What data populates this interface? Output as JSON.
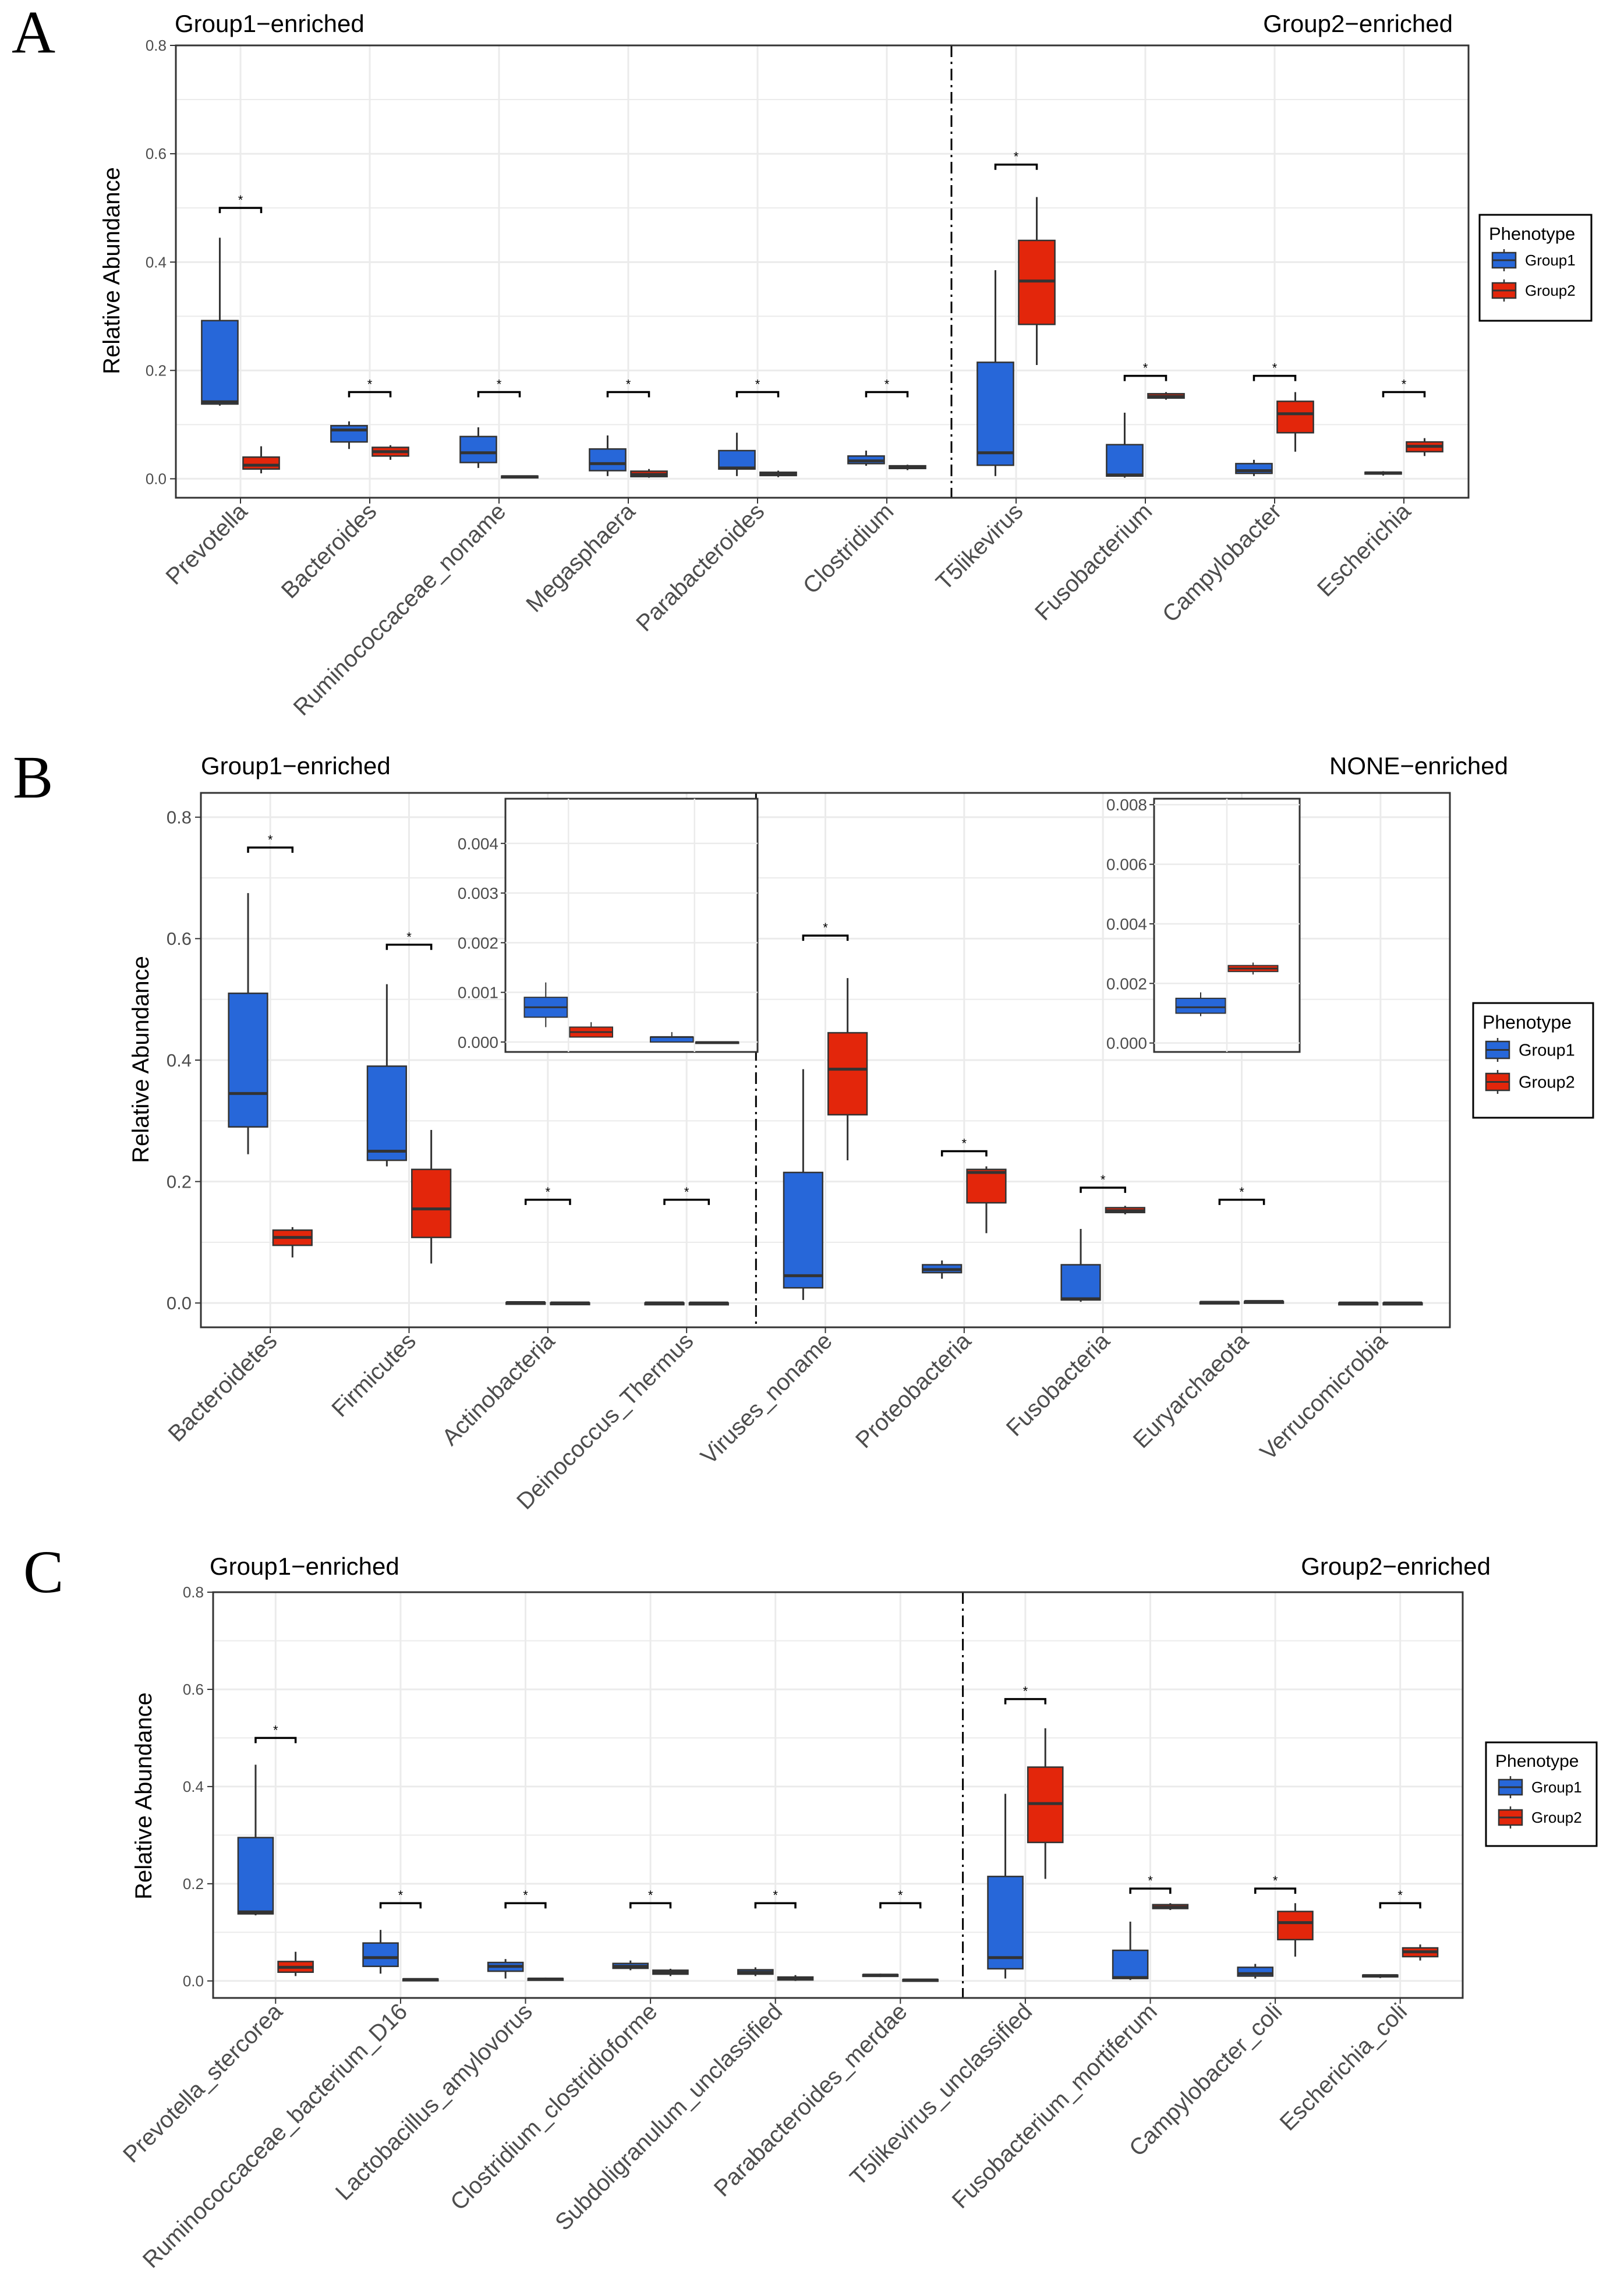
{
  "colors": {
    "group1": "#2767d9",
    "group2": "#e3260b",
    "grid": "#ebebeb",
    "panel_border": "#333333",
    "box_stroke": "#333333"
  },
  "legend": {
    "title": "Phenotype",
    "items": [
      "Group1",
      "Group2"
    ]
  },
  "chart_data": [
    {
      "panel": "A",
      "type": "box",
      "ylabel": "Relative Abundance",
      "ylim": [
        -0.035,
        0.8
      ],
      "yticks": [
        "0.0",
        "0.2",
        "0.4",
        "0.6",
        "0.8"
      ],
      "left_title": "Group1−enriched",
      "right_title": "Group2−enriched",
      "divider_after_index": 5,
      "categories": [
        "Prevotella",
        "Bacteroides",
        "Ruminococcaceae_noname",
        "Megasphaera",
        "Parabacteroides",
        "Clostridium",
        "T5likevirus",
        "Fusobacterium",
        "Campylobacter",
        "Escherichia"
      ],
      "series": [
        {
          "name": "Group1",
          "boxes": [
            [
              0.135,
              0.138,
              0.142,
              0.292,
              0.445
            ],
            [
              0.055,
              0.068,
              0.09,
              0.098,
              0.106
            ],
            [
              0.02,
              0.03,
              0.048,
              0.078,
              0.095
            ],
            [
              0.005,
              0.015,
              0.028,
              0.055,
              0.08
            ],
            [
              0.005,
              0.018,
              0.02,
              0.052,
              0.085
            ],
            [
              0.024,
              0.028,
              0.033,
              0.042,
              0.052
            ],
            [
              0.005,
              0.025,
              0.048,
              0.215,
              0.385
            ],
            [
              0.002,
              0.005,
              0.007,
              0.063,
              0.122
            ],
            [
              0.005,
              0.01,
              0.015,
              0.028,
              0.035
            ],
            [
              0.006,
              0.009,
              0.011,
              0.012,
              0.014
            ]
          ]
        },
        {
          "name": "Group2",
          "boxes": [
            [
              0.01,
              0.018,
              0.025,
              0.04,
              0.06
            ],
            [
              0.035,
              0.042,
              0.05,
              0.058,
              0.062
            ],
            [
              0.001,
              0.003,
              0.004,
              0.005,
              0.006
            ],
            [
              0.002,
              0.004,
              0.008,
              0.014,
              0.018
            ],
            [
              0.003,
              0.006,
              0.009,
              0.012,
              0.015
            ],
            [
              0.016,
              0.019,
              0.022,
              0.024,
              0.026
            ],
            [
              0.21,
              0.285,
              0.365,
              0.44,
              0.52
            ],
            [
              0.146,
              0.149,
              0.152,
              0.157,
              0.16
            ],
            [
              0.05,
              0.085,
              0.12,
              0.143,
              0.16
            ],
            [
              0.042,
              0.05,
              0.06,
              0.068,
              0.075
            ]
          ]
        }
      ],
      "significance": [
        {
          "index": 0,
          "y": 0.5,
          "label": "*"
        },
        {
          "index": 1,
          "y": 0.16,
          "label": "*"
        },
        {
          "index": 2,
          "y": 0.16,
          "label": "*"
        },
        {
          "index": 3,
          "y": 0.16,
          "label": "*"
        },
        {
          "index": 4,
          "y": 0.16,
          "label": "*"
        },
        {
          "index": 5,
          "y": 0.16,
          "label": "*"
        },
        {
          "index": 6,
          "y": 0.58,
          "label": "*"
        },
        {
          "index": 7,
          "y": 0.19,
          "label": "*"
        },
        {
          "index": 8,
          "y": 0.19,
          "label": "*"
        },
        {
          "index": 9,
          "y": 0.16,
          "label": "*"
        }
      ]
    },
    {
      "panel": "B",
      "type": "box",
      "ylabel": "Relative Abundance",
      "ylim": [
        -0.04,
        0.84
      ],
      "yticks": [
        "0.0",
        "0.2",
        "0.4",
        "0.6",
        "0.8"
      ],
      "left_title": "Group1−enriched",
      "right_title": "NONE−enriched",
      "divider_after_index": 3,
      "categories": [
        "Bacteroidetes",
        "Firmicutes",
        "Actinobacteria",
        "Deinococcus_Thermus",
        "Viruses_noname",
        "Proteobacteria",
        "Fusobacteria",
        "Euryarchaeota",
        "Verrucomicrobia"
      ],
      "series": [
        {
          "name": "Group1",
          "boxes": [
            [
              0.245,
              0.29,
              0.345,
              0.51,
              0.675
            ],
            [
              0.225,
              0.235,
              0.25,
              0.39,
              0.525
            ],
            [
              0.0003,
              0.0005,
              0.0007,
              0.0009,
              0.0012
            ],
            [
              0.0,
              0.0,
              0.0001,
              0.0001,
              0.0002
            ],
            [
              0.005,
              0.025,
              0.045,
              0.215,
              0.385
            ],
            [
              0.04,
              0.05,
              0.055,
              0.063,
              0.07
            ],
            [
              0.002,
              0.005,
              0.007,
              0.063,
              0.122
            ],
            [
              0.0009,
              0.001,
              0.0012,
              0.0015,
              0.0017
            ],
            [
              0.0,
              0.0,
              0.0,
              0.0,
              0.0
            ]
          ]
        },
        {
          "name": "Group2",
          "boxes": [
            [
              0.075,
              0.095,
              0.108,
              0.12,
              0.125
            ],
            [
              0.065,
              0.108,
              0.155,
              0.22,
              0.285
            ],
            [
              0.0001,
              0.0001,
              0.0002,
              0.0003,
              0.0004
            ],
            [
              0.0,
              0.0,
              0.0,
              0.0,
              0.0
            ],
            [
              0.235,
              0.31,
              0.385,
              0.445,
              0.535
            ],
            [
              0.115,
              0.165,
              0.215,
              0.22,
              0.225
            ],
            [
              0.146,
              0.149,
              0.152,
              0.157,
              0.16
            ],
            [
              0.0023,
              0.0024,
              0.0025,
              0.0026,
              0.0027
            ],
            [
              0.0,
              0.0,
              0.0,
              0.0,
              0.0
            ]
          ]
        }
      ],
      "significance": [
        {
          "index": 0,
          "y": 0.75,
          "label": "*"
        },
        {
          "index": 1,
          "y": 0.59,
          "label": "*"
        },
        {
          "index": 2,
          "y": 0.17,
          "label": "*"
        },
        {
          "index": 3,
          "y": 0.17,
          "label": "*"
        },
        {
          "index": 4,
          "y": 0.605,
          "label": "*"
        },
        {
          "index": 5,
          "y": 0.25,
          "label": "*"
        },
        {
          "index": 6,
          "y": 0.19,
          "label": "*"
        },
        {
          "index": 7,
          "y": 0.17,
          "label": "*"
        }
      ],
      "insets": [
        {
          "indices": [
            2,
            3
          ],
          "ylim": [
            -0.0002,
            0.0049
          ],
          "yticks": [
            "0.000",
            "0.001",
            "0.002",
            "0.003",
            "0.004"
          ],
          "yvalues": [
            0,
            0.001,
            0.002,
            0.003,
            0.004
          ]
        },
        {
          "indices": [
            7
          ],
          "ylim": [
            -0.0003,
            0.0082
          ],
          "yticks": [
            "0.000",
            "0.002",
            "0.004",
            "0.006",
            "0.008"
          ],
          "yvalues": [
            0,
            0.002,
            0.004,
            0.006,
            0.008
          ]
        }
      ]
    },
    {
      "panel": "C",
      "type": "box",
      "ylabel": "Relative Abundance",
      "ylim": [
        -0.035,
        0.8
      ],
      "yticks": [
        "0.0",
        "0.2",
        "0.4",
        "0.6",
        "0.8"
      ],
      "left_title": "Group1−enriched",
      "right_title": "Group2−enriched",
      "divider_after_index": 5,
      "categories": [
        "Prevotella_stercorea",
        "Ruminococcaceae_bacterium_D16",
        "Lactobacillus_amylovorus",
        "Clostridium_clostridioforme",
        "Subdoligranulum_unclassified",
        "Parabacteroides_merdae",
        "T5likevirus_unclassified",
        "Fusobacterium_mortiferum",
        "Campylobacter_coli",
        "Escherichia_coli"
      ],
      "series": [
        {
          "name": "Group1",
          "boxes": [
            [
              0.135,
              0.138,
              0.142,
              0.295,
              0.445
            ],
            [
              0.015,
              0.03,
              0.048,
              0.078,
              0.105
            ],
            [
              0.005,
              0.02,
              0.03,
              0.038,
              0.045
            ],
            [
              0.022,
              0.026,
              0.03,
              0.036,
              0.042
            ],
            [
              0.01,
              0.014,
              0.018,
              0.023,
              0.028
            ],
            [
              0.008,
              0.01,
              0.012,
              0.013,
              0.015
            ],
            [
              0.005,
              0.025,
              0.048,
              0.215,
              0.385
            ],
            [
              0.002,
              0.005,
              0.007,
              0.063,
              0.122
            ],
            [
              0.005,
              0.01,
              0.015,
              0.028,
              0.035
            ],
            [
              0.006,
              0.009,
              0.011,
              0.012,
              0.014
            ]
          ]
        },
        {
          "name": "Group2",
          "boxes": [
            [
              0.01,
              0.018,
              0.028,
              0.04,
              0.06
            ],
            [
              0.001,
              0.002,
              0.003,
              0.004,
              0.005
            ],
            [
              0.001,
              0.002,
              0.004,
              0.005,
              0.007
            ],
            [
              0.01,
              0.014,
              0.018,
              0.022,
              0.025
            ],
            [
              0.0,
              0.002,
              0.005,
              0.008,
              0.012
            ],
            [
              0.0,
              0.001,
              0.002,
              0.003,
              0.004
            ],
            [
              0.21,
              0.285,
              0.365,
              0.44,
              0.52
            ],
            [
              0.146,
              0.149,
              0.152,
              0.157,
              0.16
            ],
            [
              0.05,
              0.085,
              0.12,
              0.143,
              0.16
            ],
            [
              0.042,
              0.05,
              0.06,
              0.068,
              0.075
            ]
          ]
        }
      ],
      "significance": [
        {
          "index": 0,
          "y": 0.5,
          "label": "*"
        },
        {
          "index": 1,
          "y": 0.16,
          "label": "*"
        },
        {
          "index": 2,
          "y": 0.16,
          "label": "*"
        },
        {
          "index": 3,
          "y": 0.16,
          "label": "*"
        },
        {
          "index": 4,
          "y": 0.16,
          "label": "*"
        },
        {
          "index": 5,
          "y": 0.16,
          "label": "*"
        },
        {
          "index": 6,
          "y": 0.58,
          "label": "*"
        },
        {
          "index": 7,
          "y": 0.19,
          "label": "*"
        },
        {
          "index": 8,
          "y": 0.19,
          "label": "*"
        },
        {
          "index": 9,
          "y": 0.16,
          "label": "*"
        }
      ]
    }
  ]
}
